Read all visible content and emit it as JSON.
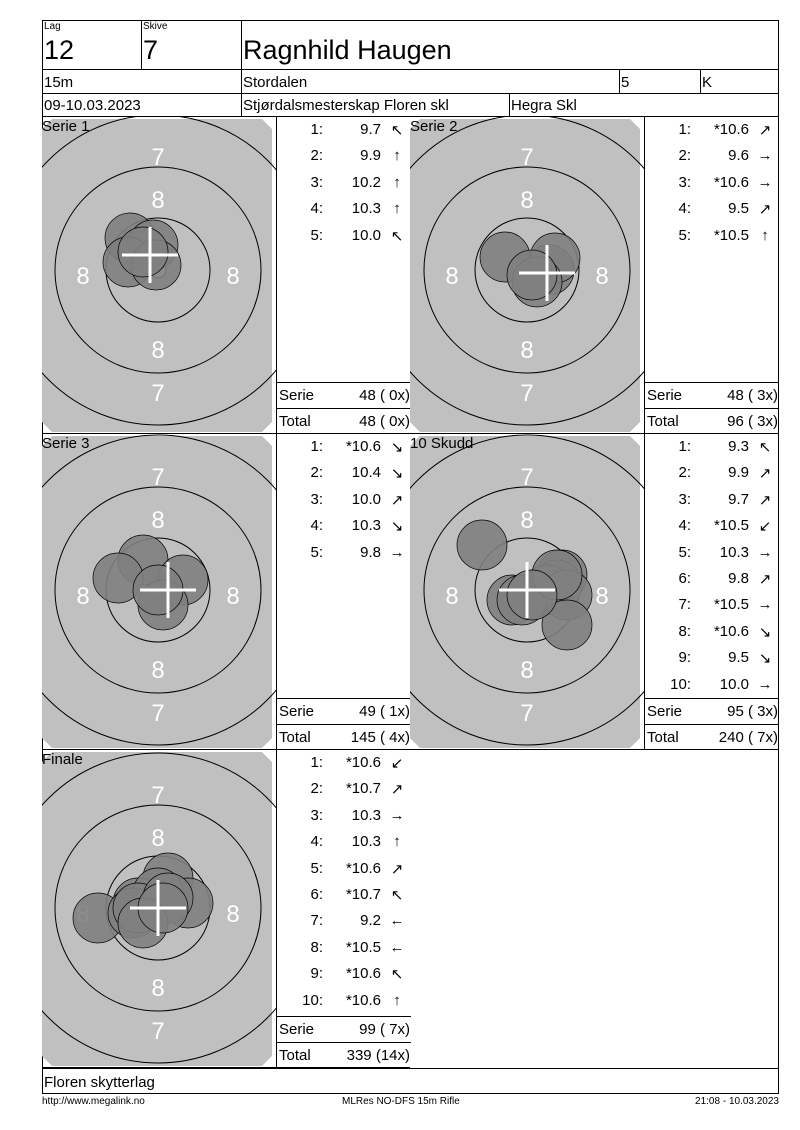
{
  "header": {
    "lag_label": "Lag",
    "lag": "12",
    "skive_label": "Skive",
    "skive": "7",
    "name": "Ragnhild Haugen",
    "distance": "15m",
    "club": "Stordalen",
    "klasse_num": "5",
    "klasse": "K",
    "date": "09-10.03.2023",
    "event": "Stjørdalsmesterskap Floren skl",
    "venue": "Hegra Skl"
  },
  "panels": [
    {
      "title": "Serie 1",
      "shots": [
        {
          "n": "1:",
          "v": "9.7",
          "a": "↖"
        },
        {
          "n": "2:",
          "v": "9.9",
          "a": "↑"
        },
        {
          "n": "3:",
          "v": "10.2",
          "a": "↑"
        },
        {
          "n": "4:",
          "v": "10.3",
          "a": "↑"
        },
        {
          "n": "5:",
          "v": "10.0",
          "a": "↖"
        }
      ],
      "serie_label": "Serie",
      "serie": "48 ( 0x)",
      "total_label": "Total",
      "total": "48 ( 0x)"
    },
    {
      "title": "Serie 2",
      "shots": [
        {
          "n": "1:",
          "v": "*10.6",
          "a": "↗"
        },
        {
          "n": "2:",
          "v": "9.6",
          "a": "→"
        },
        {
          "n": "3:",
          "v": "*10.6",
          "a": "→"
        },
        {
          "n": "4:",
          "v": "9.5",
          "a": "↗"
        },
        {
          "n": "5:",
          "v": "*10.5",
          "a": "↑"
        }
      ],
      "serie_label": "Serie",
      "serie": "48 ( 3x)",
      "total_label": "Total",
      "total": "96 ( 3x)"
    },
    {
      "title": "Serie 3",
      "shots": [
        {
          "n": "1:",
          "v": "*10.6",
          "a": "↘"
        },
        {
          "n": "2:",
          "v": "10.4",
          "a": "↘"
        },
        {
          "n": "3:",
          "v": "10.0",
          "a": "↗"
        },
        {
          "n": "4:",
          "v": "10.3",
          "a": "↘"
        },
        {
          "n": "5:",
          "v": "9.8",
          "a": "→"
        }
      ],
      "serie_label": "Serie",
      "serie": "49 ( 1x)",
      "total_label": "Total",
      "total": "145 ( 4x)"
    },
    {
      "title": "10 Skudd",
      "shots": [
        {
          "n": "1:",
          "v": "9.3",
          "a": "↖"
        },
        {
          "n": "2:",
          "v": "9.9",
          "a": "↗"
        },
        {
          "n": "3:",
          "v": "9.7",
          "a": "↗"
        },
        {
          "n": "4:",
          "v": "*10.5",
          "a": "↙"
        },
        {
          "n": "5:",
          "v": "10.3",
          "a": "→"
        },
        {
          "n": "6:",
          "v": "9.8",
          "a": "↗"
        },
        {
          "n": "7:",
          "v": "*10.5",
          "a": "→"
        },
        {
          "n": "8:",
          "v": "*10.6",
          "a": "↘"
        },
        {
          "n": "9:",
          "v": "9.5",
          "a": "↘"
        },
        {
          "n": "10:",
          "v": "10.0",
          "a": "→"
        }
      ],
      "serie_label": "Serie",
      "serie": "95 ( 3x)",
      "total_label": "Total",
      "total": "240 ( 7x)"
    },
    {
      "title": "Finale",
      "shots": [
        {
          "n": "1:",
          "v": "*10.6",
          "a": "↙"
        },
        {
          "n": "2:",
          "v": "*10.7",
          "a": "↗"
        },
        {
          "n": "3:",
          "v": "10.3",
          "a": "→"
        },
        {
          "n": "4:",
          "v": "10.3",
          "a": "↑"
        },
        {
          "n": "5:",
          "v": "*10.6",
          "a": "↗"
        },
        {
          "n": "6:",
          "v": "*10.7",
          "a": "↖"
        },
        {
          "n": "7:",
          "v": "9.2",
          "a": "←"
        },
        {
          "n": "8:",
          "v": "*10.5",
          "a": "←"
        },
        {
          "n": "9:",
          "v": "*10.6",
          "a": "↖"
        },
        {
          "n": "10:",
          "v": "*10.6",
          "a": "↑"
        }
      ],
      "serie_label": "Serie",
      "serie": "99 ( 7x)",
      "total_label": "Total",
      "total": "339 (14x)"
    }
  ],
  "ring_labels": {
    "seven": "7",
    "eight": "8"
  },
  "footer": {
    "club": "Floren skytterlag",
    "url": "http://www.megalink.no",
    "software": "MLRes NO-DFS 15m Rifle",
    "timestamp": "21:08 - 10.03.2023"
  },
  "colors": {
    "target_bg": "#c0c0c0",
    "shot": "#808080"
  }
}
